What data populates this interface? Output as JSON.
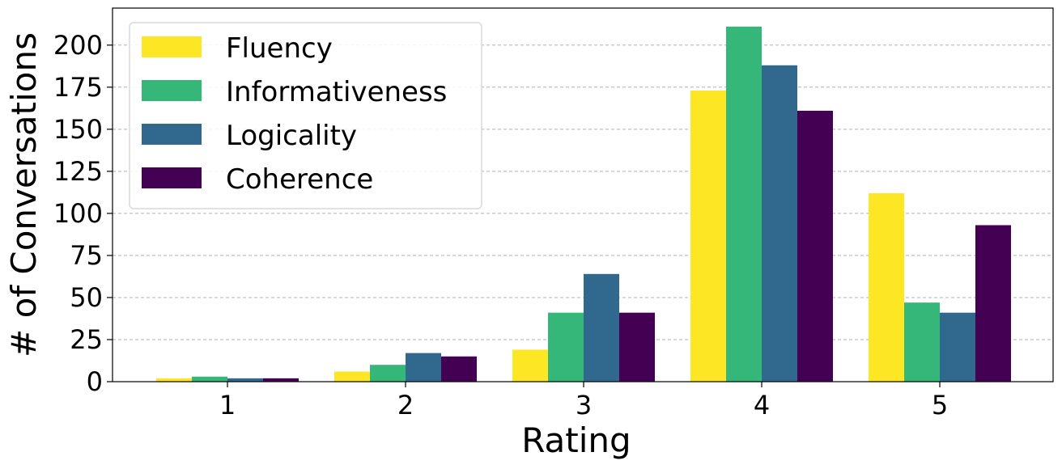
{
  "chart_data": {
    "type": "bar",
    "title": "",
    "xlabel": "Rating",
    "ylabel": "# of Conversations",
    "categories": [
      "1",
      "2",
      "3",
      "4",
      "5"
    ],
    "series": [
      {
        "name": "Fluency",
        "values": [
          2,
          6,
          19,
          173,
          112
        ],
        "color": "#fde725"
      },
      {
        "name": "Informativeness",
        "values": [
          3,
          10,
          41,
          211,
          47
        ],
        "color": "#35b779"
      },
      {
        "name": "Logicality",
        "values": [
          2,
          17,
          64,
          188,
          41
        ],
        "color": "#31688e"
      },
      {
        "name": "Coherence",
        "values": [
          2,
          15,
          41,
          161,
          93
        ],
        "color": "#440154"
      }
    ],
    "ylim": [
      0,
      222
    ],
    "yticks": [
      "0",
      "25",
      "50",
      "75",
      "100",
      "125",
      "150",
      "175",
      "200"
    ],
    "grid": "y-dashed",
    "legend_position": "top-left"
  }
}
